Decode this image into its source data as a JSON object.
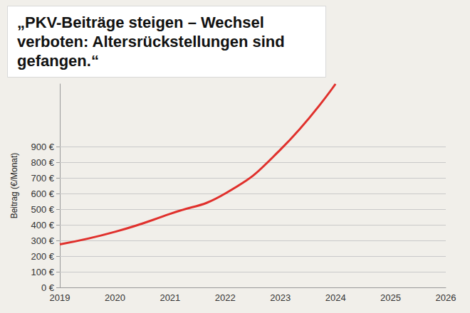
{
  "chart_data": {
    "type": "line",
    "title": "„PKV-Beiträge steigen – Wechsel verboten: Altersrückstellungen sind gefangen.“",
    "y_label": "Beitrag (€/Monat)",
    "categories": [
      "2019",
      "2020",
      "2021",
      "2022",
      "2023",
      "2024",
      "2025",
      "2026"
    ],
    "values": [
      275,
      355,
      470,
      600,
      880,
      1300,
      null,
      null
    ],
    "color": "#e0302c",
    "line_style": "solid",
    "ylim": [
      0,
      1300
    ],
    "yticks": [
      {
        "value": 0,
        "label": "0 €"
      },
      {
        "value": 100,
        "label": "100 €"
      },
      {
        "value": 200,
        "label": "200 €"
      },
      {
        "value": 300,
        "label": "300 €"
      },
      {
        "value": 400,
        "label": "400 €"
      },
      {
        "value": 500,
        "label": "500 €"
      },
      {
        "value": 600,
        "label": "600 €"
      },
      {
        "value": 700,
        "label": "700 €"
      },
      {
        "value": 800,
        "label": "800 €"
      },
      {
        "value": 900,
        "label": "900 €"
      }
    ],
    "grid": true
  }
}
